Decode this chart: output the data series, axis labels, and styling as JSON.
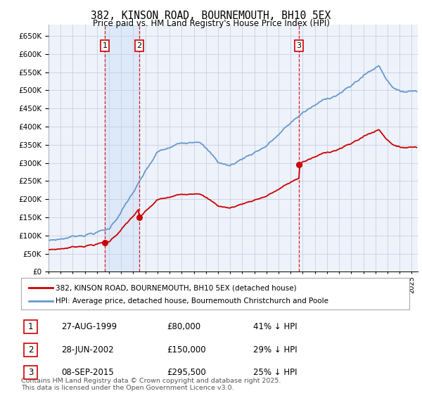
{
  "title": "382, KINSON ROAD, BOURNEMOUTH, BH10 5EX",
  "subtitle": "Price paid vs. HM Land Registry's House Price Index (HPI)",
  "purchases": [
    {
      "date_num": 1999.65,
      "price": 80000,
      "label": "1"
    },
    {
      "date_num": 2002.49,
      "price": 150000,
      "label": "2"
    },
    {
      "date_num": 2015.69,
      "price": 295500,
      "label": "3"
    }
  ],
  "purchase_dates_str": [
    "27-AUG-1999",
    "28-JUN-2002",
    "08-SEP-2015"
  ],
  "purchase_prices_str": [
    "£80,000",
    "£150,000",
    "£295,500"
  ],
  "purchase_notes": [
    "41% ↓ HPI",
    "29% ↓ HPI",
    "25% ↓ HPI"
  ],
  "legend_line1": "382, KINSON ROAD, BOURNEMOUTH, BH10 5EX (detached house)",
  "legend_line2": "HPI: Average price, detached house, Bournemouth Christchurch and Poole",
  "footer": "Contains HM Land Registry data © Crown copyright and database right 2025.\nThis data is licensed under the Open Government Licence v3.0.",
  "ylim": [
    0,
    680000
  ],
  "xlim_start": 1995.0,
  "xlim_end": 2025.5,
  "red_color": "#cc0000",
  "blue_color": "#6699cc",
  "shade_color": "#dde8f8",
  "background_chart": "#eef2fb",
  "grid_color": "#c8d0e0"
}
